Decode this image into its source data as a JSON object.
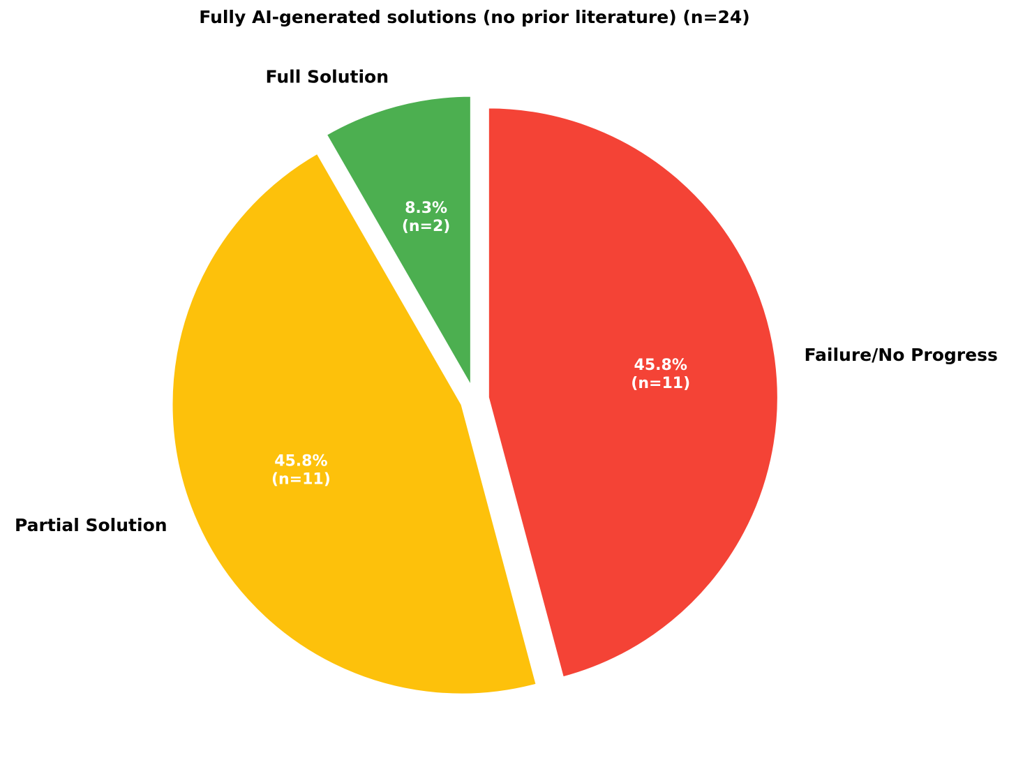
{
  "chart_data": {
    "type": "pie",
    "title": "Fully AI-generated solutions (no prior literature) (n=24)",
    "categories": [
      "Full Solution",
      "Partial Solution",
      "Failure/No Progress"
    ],
    "values": [
      8.3,
      45.8,
      45.8
    ],
    "value_labels": [
      "8.3%",
      "45.8%",
      "45.8%"
    ],
    "counts": [
      2,
      11,
      11
    ],
    "count_labels": [
      "(n=2)",
      "(n=11)",
      "(n=11)"
    ],
    "colors": [
      "#4caf50",
      "#fdc10b",
      "#f44336"
    ],
    "start_angle": 90,
    "counterclockwise": true
  }
}
